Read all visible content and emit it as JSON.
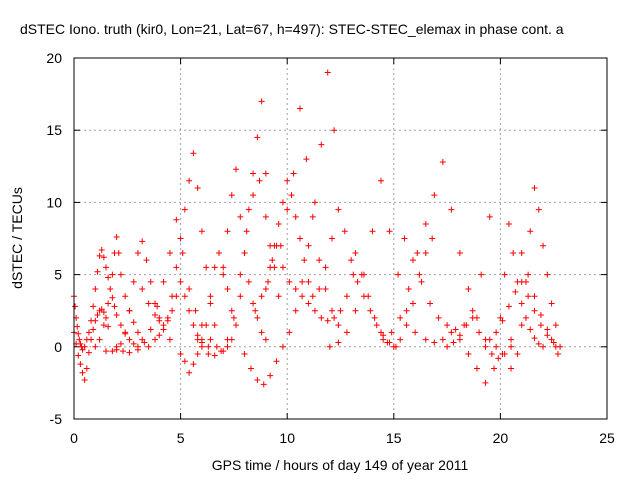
{
  "chart_data": {
    "type": "scatter",
    "title": "dSTEC Iono. truth (kir0, Lon=21, Lat=67, h=497): STEC-STEC_elemax in phase cont. a",
    "xlabel": "GPS time / hours of day 149 of year 2011",
    "ylabel": "dSTEC  / TECUs",
    "xlim": [
      0,
      25
    ],
    "ylim": [
      -5,
      20
    ],
    "xticks": [
      "0",
      "5",
      "10",
      "15",
      "20",
      "25"
    ],
    "yticks": [
      "-5",
      "0",
      "5",
      "10",
      "15",
      "20"
    ],
    "grid": true,
    "marker": "+",
    "color": "#ff0000",
    "series": [
      {
        "x": [
          0.0,
          0.1,
          0.2,
          0.3,
          0.4,
          0.5,
          0.6,
          0.7,
          0.8,
          0.9,
          1.0,
          1.1,
          1.2,
          1.3,
          1.4,
          1.5,
          1.6
        ],
        "values": [
          1.0,
          0.2,
          -0.6,
          -1.2,
          -1.8,
          -2.3,
          -1.5,
          -0.4,
          0.5,
          1.2,
          1.8,
          2.2,
          2.5,
          2.6,
          2.4,
          2.0,
          1.4
        ]
      },
      {
        "x": [
          0.0,
          0.05,
          0.1,
          0.15,
          0.2,
          0.25,
          0.3,
          0.35,
          0.4
        ],
        "values": [
          3.5,
          2.8,
          2.0,
          1.4,
          0.9,
          0.5,
          0.2,
          0.0,
          -0.2
        ]
      },
      {
        "x": [
          0.5,
          0.6,
          0.7,
          0.8,
          0.9,
          1.0,
          1.1,
          1.2,
          1.3,
          1.4,
          1.5,
          1.6,
          1.7,
          1.8,
          1.9,
          2.0,
          2.2,
          2.4,
          2.6,
          2.8,
          3.0
        ],
        "values": [
          0.0,
          0.5,
          1.0,
          1.8,
          2.8,
          4.0,
          5.2,
          6.3,
          6.7,
          6.2,
          5.5,
          4.8,
          4.0,
          3.4,
          2.8,
          2.2,
          1.5,
          0.9,
          0.5,
          0.2,
          0.0
        ]
      },
      {
        "x": [
          1.0,
          1.2,
          1.4,
          1.6,
          1.8,
          1.9,
          2.0,
          2.1,
          2.2,
          2.4,
          2.6,
          2.8,
          3.0,
          3.2,
          3.5
        ],
        "values": [
          0.0,
          0.5,
          1.5,
          3.0,
          5.0,
          6.5,
          7.6,
          6.5,
          5.0,
          3.5,
          2.5,
          1.7,
          1.0,
          0.5,
          0.0
        ]
      },
      {
        "x": [
          1.5,
          1.8,
          2.0,
          2.2,
          2.4,
          2.6,
          2.8,
          3.0,
          3.2,
          3.4,
          3.6,
          3.8,
          4.0,
          4.2,
          4.5
        ],
        "values": [
          -0.3,
          -0.3,
          -0.2,
          0.2,
          1.0,
          2.5,
          4.5,
          6.5,
          7.3,
          6.0,
          4.5,
          3.0,
          2.0,
          1.2,
          0.5
        ]
      },
      {
        "x": [
          2.0,
          2.3,
          2.6,
          3.0,
          3.3,
          3.6,
          3.9,
          4.2,
          4.5,
          4.8,
          5.1,
          5.4,
          5.7,
          6.0
        ],
        "values": [
          0.0,
          -0.3,
          -0.4,
          -0.2,
          0.3,
          1.2,
          2.8,
          4.5,
          6.5,
          8.8,
          6.5,
          4.0,
          2.5,
          1.5
        ]
      },
      {
        "x": [
          3.2,
          3.5,
          3.8,
          4.0,
          4.2,
          4.4,
          4.6,
          4.8,
          5.0,
          5.2,
          5.4,
          5.6,
          5.8,
          6.0,
          6.3
        ],
        "values": [
          4.0,
          3.0,
          2.2,
          1.8,
          1.5,
          1.8,
          2.5,
          3.5,
          4.5,
          3.5,
          2.5,
          1.5,
          0.8,
          0.3,
          0.0
        ]
      },
      {
        "x": [
          3.8,
          4.0,
          4.2,
          4.4,
          4.6,
          4.8,
          5.0,
          5.2,
          5.4,
          5.6,
          5.8,
          6.0,
          6.2,
          6.4,
          6.6
        ],
        "values": [
          0.5,
          0.8,
          1.2,
          2.0,
          3.5,
          5.5,
          7.5,
          9.5,
          11.5,
          13.4,
          11.0,
          8.0,
          5.5,
          3.0,
          1.5
        ]
      },
      {
        "x": [
          5.0,
          5.2,
          5.4,
          5.6,
          5.8,
          6.0,
          6.2,
          6.4,
          6.6,
          6.8,
          7.0,
          7.2,
          7.4
        ],
        "values": [
          -0.5,
          -1.0,
          -1.8,
          -1.2,
          -0.5,
          0.5,
          1.5,
          3.5,
          5.5,
          6.5,
          5.5,
          4.0,
          2.5
        ]
      },
      {
        "x": [
          5.8,
          6.0,
          6.3,
          6.6,
          6.9,
          7.2,
          7.5,
          7.8,
          8.1,
          8.4,
          8.7,
          9.0,
          9.3,
          9.6
        ],
        "values": [
          0.5,
          0.0,
          -0.5,
          -0.6,
          -0.3,
          0.5,
          2.0,
          5.0,
          8.0,
          10.5,
          11.5,
          9.0,
          6.0,
          3.5
        ]
      },
      {
        "x": [
          6.4,
          6.7,
          7.0,
          7.2,
          7.4,
          7.6,
          7.8,
          8.0,
          8.2,
          8.4,
          8.6,
          8.8,
          9.0,
          9.2
        ],
        "values": [
          0.5,
          0.0,
          -0.3,
          0.0,
          0.5,
          1.5,
          3.5,
          6.5,
          9.5,
          12.0,
          14.5,
          17.0,
          12.0,
          7.0
        ]
      },
      {
        "x": [
          7.0,
          7.2,
          7.4,
          7.6,
          7.8,
          8.0,
          8.2,
          8.4,
          8.6,
          8.8,
          9.0
        ],
        "values": [
          5.0,
          8.0,
          10.5,
          12.3,
          9.0,
          6.5,
          4.5,
          3.0,
          2.0,
          1.0,
          0.5
        ]
      },
      {
        "x": [
          8.0,
          8.3,
          8.6,
          8.9,
          9.2,
          9.5,
          9.8,
          10.1,
          10.4,
          10.7,
          11.0,
          11.3,
          11.6,
          11.9,
          12.2
        ],
        "values": [
          -0.5,
          -1.5,
          -2.3,
          -2.6,
          -2.0,
          -1.0,
          0.0,
          1.0,
          2.5,
          4.5,
          7.0,
          10.0,
          14.0,
          19.0,
          15.0
        ]
      },
      {
        "x": [
          8.5,
          8.8,
          9.1,
          9.4,
          9.7,
          10.0,
          10.3,
          10.6,
          10.9,
          11.2,
          11.5,
          11.8,
          12.1,
          12.4
        ],
        "values": [
          2.5,
          3.5,
          4.5,
          5.5,
          7.0,
          9.5,
          12.0,
          16.5,
          13.0,
          9.0,
          6.0,
          4.0,
          2.5,
          1.5
        ]
      },
      {
        "x": [
          9.0,
          9.2,
          9.4,
          9.6,
          9.8,
          10.0,
          10.2,
          10.4,
          10.6,
          10.8,
          11.0,
          11.2
        ],
        "values": [
          4.0,
          5.5,
          7.0,
          8.5,
          10.0,
          11.5,
          10.5,
          9.0,
          7.5,
          6.0,
          4.5,
          3.5
        ]
      },
      {
        "x": [
          9.5,
          9.8,
          10.1,
          10.4,
          10.7,
          11.0,
          11.3,
          11.6,
          11.9,
          12.2,
          12.5,
          12.8,
          13.1
        ],
        "values": [
          7.0,
          5.5,
          4.5,
          4.0,
          3.5,
          3.0,
          2.5,
          2.0,
          1.8,
          2.0,
          2.5,
          3.5,
          5.0
        ]
      },
      {
        "x": [
          11.5,
          11.8,
          12.1,
          12.4,
          12.7,
          13.0,
          13.3,
          13.6,
          13.9,
          14.2,
          14.5,
          14.8,
          15.1
        ],
        "values": [
          4.0,
          5.5,
          7.5,
          9.5,
          8.0,
          6.0,
          4.5,
          3.5,
          2.5,
          1.5,
          0.8,
          0.3,
          0.0
        ]
      },
      {
        "x": [
          12.0,
          12.4,
          12.8,
          13.2,
          13.6,
          14.0,
          14.4,
          14.8,
          15.2,
          15.6,
          16.0
        ],
        "values": [
          0.0,
          0.3,
          1.0,
          2.5,
          5.0,
          8.0,
          11.5,
          8.0,
          5.0,
          2.5,
          1.0
        ]
      },
      {
        "x": [
          13.2,
          13.5,
          13.8,
          14.1,
          14.4,
          14.7,
          15.0,
          15.3,
          15.6,
          15.9,
          16.2,
          16.5,
          16.8
        ],
        "values": [
          6.5,
          5.0,
          3.5,
          2.0,
          1.0,
          0.3,
          0.0,
          0.5,
          1.5,
          3.0,
          5.0,
          6.5,
          7.5
        ]
      },
      {
        "x": [
          14.5,
          14.9,
          15.3,
          15.7,
          16.1,
          16.5,
          16.9,
          17.3,
          17.7,
          18.1,
          18.5,
          18.9,
          19.3
        ],
        "values": [
          0.5,
          1.0,
          2.0,
          4.0,
          6.5,
          8.5,
          10.5,
          12.8,
          9.5,
          6.5,
          4.0,
          2.0,
          0.5
        ]
      },
      {
        "x": [
          15.5,
          15.9,
          16.3,
          16.7,
          17.1,
          17.5,
          17.9,
          18.3,
          18.7,
          19.1,
          19.5
        ],
        "values": [
          7.5,
          6.0,
          4.5,
          3.0,
          2.0,
          1.5,
          1.2,
          1.5,
          2.5,
          5.0,
          9.0
        ]
      },
      {
        "x": [
          16.5,
          16.9,
          17.3,
          17.7,
          18.1,
          18.5,
          18.9,
          19.3,
          19.7,
          20.1,
          20.5
        ],
        "values": [
          0.5,
          0.3,
          0.5,
          1.0,
          0.5,
          -0.5,
          -1.5,
          -2.5,
          -1.5,
          -0.5,
          0.5
        ]
      },
      {
        "x": [
          17.5,
          17.8,
          18.1,
          18.4,
          18.7,
          19.0,
          19.3,
          19.6,
          19.9,
          20.2,
          20.5
        ],
        "values": [
          0.0,
          0.3,
          0.8,
          1.5,
          2.0,
          1.0,
          0.0,
          -0.5,
          -0.8,
          -0.5,
          0.0
        ]
      },
      {
        "x": [
          19.5,
          19.8,
          20.1,
          20.4,
          20.7,
          21.0,
          21.3,
          21.6,
          21.9,
          22.2,
          22.5,
          22.8
        ],
        "values": [
          0.5,
          1.0,
          1.8,
          2.8,
          3.8,
          4.5,
          3.5,
          2.5,
          1.5,
          0.8,
          0.3,
          0.0
        ]
      },
      {
        "x": [
          19.8,
          20.0,
          20.2,
          20.4,
          20.6,
          20.8,
          21.0,
          21.2,
          21.4,
          21.6,
          21.8,
          22.0
        ],
        "values": [
          0.0,
          2.0,
          5.0,
          8.5,
          6.5,
          4.5,
          3.0,
          2.0,
          1.2,
          0.6,
          0.2,
          0.0
        ]
      },
      {
        "x": [
          20.5,
          20.8,
          21.0,
          21.2,
          21.4,
          21.6,
          21.8,
          22.0,
          22.2,
          22.4,
          22.6
        ],
        "values": [
          -1.5,
          -0.5,
          1.5,
          4.5,
          8.0,
          11.0,
          9.5,
          7.0,
          5.0,
          3.0,
          1.5
        ]
      },
      {
        "x": [
          21.0,
          21.3,
          21.6,
          21.9,
          22.2,
          22.4,
          22.6,
          22.7
        ],
        "values": [
          6.5,
          5.0,
          3.5,
          2.2,
          1.2,
          0.5,
          0.0,
          -0.5
        ]
      }
    ]
  }
}
